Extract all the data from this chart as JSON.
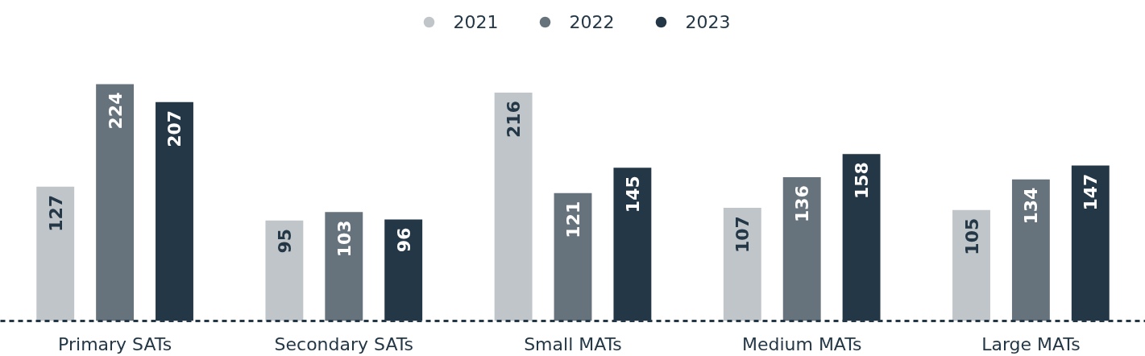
{
  "chart_data": {
    "type": "bar",
    "categories": [
      "Primary SATs",
      "Secondary SATs",
      "Small MATs",
      "Medium MATs",
      "Large MATs"
    ],
    "series": [
      {
        "name": "2021",
        "color": "#c0c5ca",
        "values": [
          127,
          95,
          216,
          107,
          105
        ]
      },
      {
        "name": "2022",
        "color": "#67737c",
        "values": [
          224,
          103,
          121,
          136,
          134
        ]
      },
      {
        "name": "2023",
        "color": "#243746",
        "values": [
          207,
          96,
          145,
          158,
          147
        ]
      }
    ],
    "data_labels": true,
    "legend": "top",
    "grid": false
  }
}
